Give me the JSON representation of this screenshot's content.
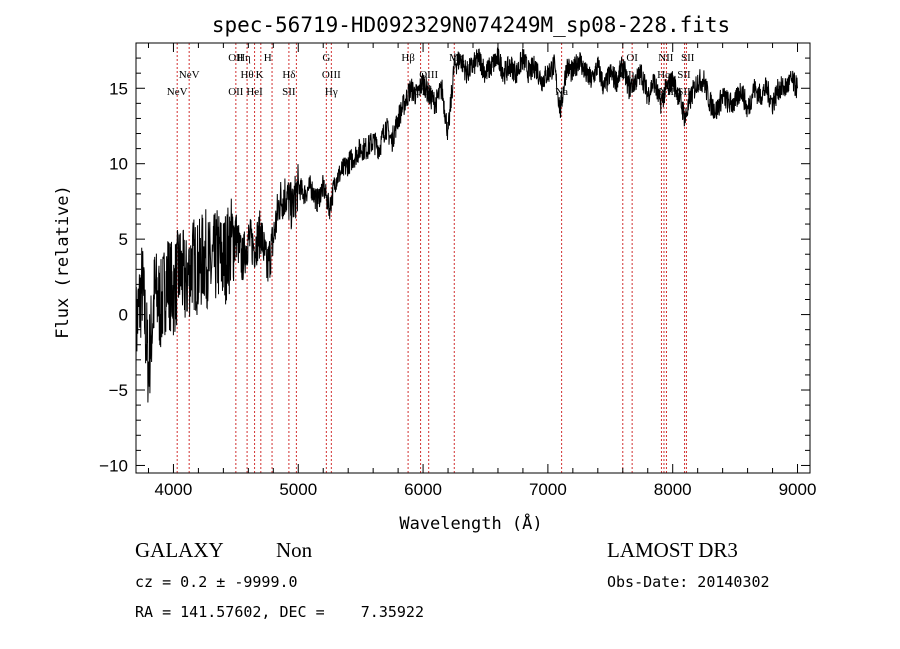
{
  "chart_data": {
    "type": "line",
    "title": "spec-56719-HD092329N074249M_sp08-228.fits",
    "xlabel": "Wavelength (Å)",
    "ylabel": "Flux (relative)",
    "xlim": [
      3700,
      9100
    ],
    "ylim": [
      -10.5,
      18
    ],
    "xticks": [
      4000,
      5000,
      6000,
      7000,
      8000,
      9000
    ],
    "yticks": [
      -10,
      -5,
      0,
      5,
      10,
      15
    ],
    "series": [
      {
        "name": "flux",
        "x": [
          3700,
          3750,
          3800,
          3850,
          3900,
          3950,
          4000,
          4050,
          4100,
          4150,
          4200,
          4250,
          4300,
          4350,
          4400,
          4450,
          4500,
          4550,
          4600,
          4650,
          4700,
          4750,
          4800,
          4850,
          4900,
          4950,
          5000,
          5050,
          5100,
          5150,
          5200,
          5250,
          5300,
          5350,
          5400,
          5450,
          5500,
          5550,
          5600,
          5650,
          5700,
          5750,
          5800,
          5850,
          5900,
          5950,
          6000,
          6050,
          6100,
          6150,
          6200,
          6250,
          6300,
          6350,
          6400,
          6450,
          6500,
          6550,
          6600,
          6650,
          6700,
          6750,
          6800,
          6850,
          6900,
          6950,
          7000,
          7050,
          7100,
          7150,
          7200,
          7250,
          7300,
          7350,
          7400,
          7450,
          7500,
          7550,
          7600,
          7650,
          7700,
          7750,
          7800,
          7850,
          7900,
          7950,
          8000,
          8050,
          8100,
          8150,
          8200,
          8250,
          8300,
          8350,
          8400,
          8450,
          8500,
          8550,
          8600,
          8650,
          8700,
          8750,
          8800,
          8850,
          8900,
          8950,
          9000
        ],
        "y": [
          -1.0,
          2.0,
          -3.5,
          1.5,
          0.5,
          2.5,
          1.5,
          3.0,
          2.0,
          3.5,
          3.0,
          4.0,
          3.0,
          4.0,
          3.5,
          4.5,
          5.5,
          3.5,
          5.0,
          4.5,
          5.5,
          3.0,
          5.0,
          7.5,
          8.0,
          7.0,
          8.5,
          8.0,
          8.5,
          7.5,
          8.5,
          7.0,
          9.0,
          9.5,
          10.0,
          10.5,
          11.0,
          11.0,
          11.5,
          11.0,
          12.5,
          11.5,
          13.0,
          14.0,
          15.0,
          14.5,
          15.5,
          14.5,
          14.0,
          15.0,
          12.0,
          16.5,
          17.0,
          16.0,
          16.5,
          17.0,
          16.0,
          16.5,
          17.0,
          16.0,
          16.5,
          16.0,
          17.0,
          16.0,
          16.5,
          15.5,
          16.0,
          16.5,
          13.5,
          16.5,
          16.0,
          17.0,
          16.0,
          15.5,
          16.5,
          15.0,
          16.0,
          15.5,
          16.5,
          15.0,
          15.5,
          16.0,
          14.5,
          15.5,
          14.0,
          15.0,
          15.5,
          14.5,
          13.0,
          14.5,
          15.5,
          15.5,
          14.0,
          13.5,
          14.5,
          14.0,
          14.0,
          15.0,
          13.5,
          15.0,
          14.5,
          15.0,
          14.0,
          15.0,
          15.0,
          15.5,
          15.0
        ]
      }
    ],
    "emission_lines": [
      {
        "label": "NeV",
        "wavelength": 4030,
        "row": 2
      },
      {
        "label": "NeV",
        "wavelength": 4126,
        "row": 1
      },
      {
        "label": "OII",
        "wavelength": 4500,
        "row": 0
      },
      {
        "label": "OII",
        "wavelength": 4500,
        "row": 2
      },
      {
        "label": "Hη",
        "wavelength": 4565,
        "row": 0
      },
      {
        "label": "Hθ",
        "wavelength": 4590,
        "row": 1
      },
      {
        "label": "HeI",
        "wavelength": 4650,
        "row": 2
      },
      {
        "label": "K",
        "wavelength": 4690,
        "row": 1
      },
      {
        "label": "H",
        "wavelength": 4755,
        "row": 0
      },
      {
        "label": "Hδ",
        "wavelength": 4925,
        "row": 1
      },
      {
        "label": "SII",
        "wavelength": 4925,
        "row": 2
      },
      {
        "label": "G",
        "wavelength": 5225,
        "row": 0
      },
      {
        "label": "OIII",
        "wavelength": 5265,
        "row": 1
      },
      {
        "label": "Hγ",
        "wavelength": 5265,
        "row": 2
      },
      {
        "label": "Hβ",
        "wavelength": 5880,
        "row": 0
      },
      {
        "label": "OIII",
        "wavelength": 6045,
        "row": 1
      },
      {
        "label": "OIII",
        "wavelength": 6000,
        "row": 2
      },
      {
        "label": "Mg",
        "wavelength": 6270,
        "row": 0
      },
      {
        "label": "Na",
        "wavelength": 7110,
        "row": 2
      },
      {
        "label": "OI",
        "wavelength": 7675,
        "row": 0
      },
      {
        "label": "OI",
        "wavelength": 7625,
        "row": 1
      },
      {
        "label": "NII",
        "wavelength": 7945,
        "row": 0
      },
      {
        "label": "Hα",
        "wavelength": 7930,
        "row": 1
      },
      {
        "label": "NII",
        "wavelength": 7950,
        "row": 2
      },
      {
        "label": "SII",
        "wavelength": 8120,
        "row": 0
      },
      {
        "label": "SII",
        "wavelength": 8090,
        "row": 1
      },
      {
        "label": "SII",
        "wavelength": 8090,
        "row": 2
      }
    ],
    "line_marker_wavelengths": [
      4030,
      4126,
      4500,
      4590,
      4650,
      4700,
      4790,
      4925,
      4985,
      5225,
      5265,
      5880,
      5980,
      6045,
      6250,
      7110,
      7600,
      7675,
      7910,
      7930,
      7950,
      8095,
      8110
    ]
  },
  "info": {
    "object_type": "GALAXY",
    "subclass": "Non",
    "survey": "LAMOST DR3",
    "cz_line": "cz = 0.2 ± -9999.0",
    "obs_date_line": "Obs-Date: 20140302",
    "coords_line": "RA = 141.57602, DEC =    7.35922"
  }
}
